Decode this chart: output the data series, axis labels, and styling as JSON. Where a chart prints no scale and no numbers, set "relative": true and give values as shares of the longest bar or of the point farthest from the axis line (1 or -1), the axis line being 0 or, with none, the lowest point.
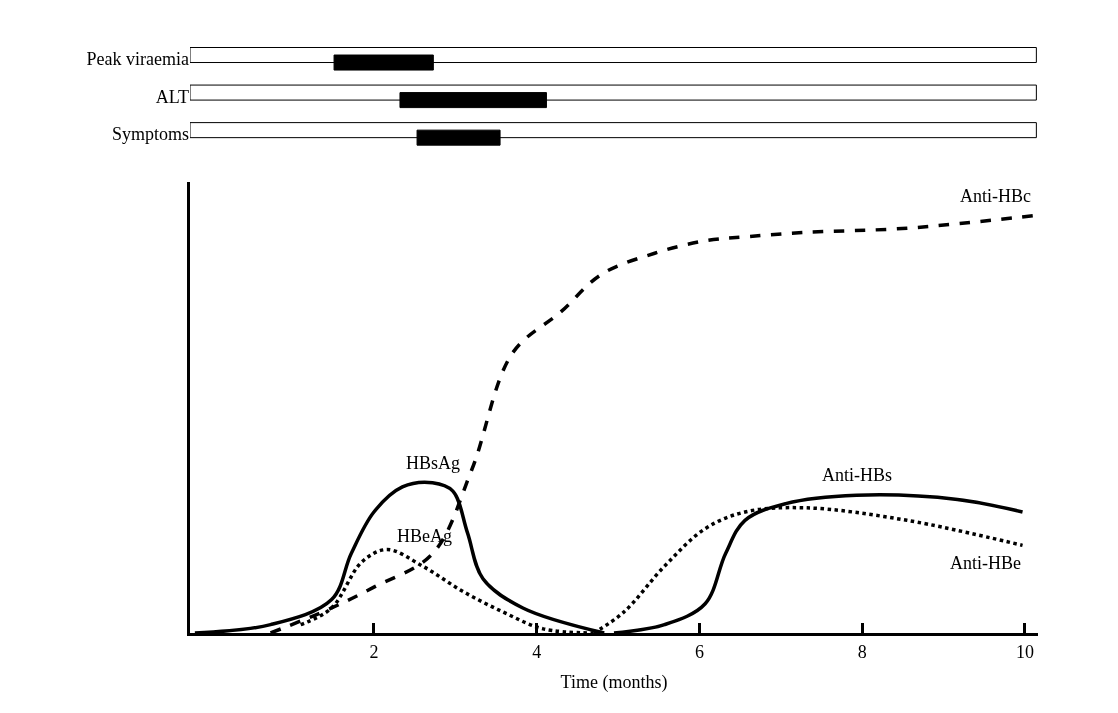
{
  "chart_data": [
    {
      "type": "bar",
      "orientation": "horizontal",
      "categories": [
        "Peak viraemia",
        "ALT",
        "Symptoms"
      ],
      "xlim": [
        -0.26,
        10.16
      ],
      "tick_labels": "y",
      "series": [
        {
          "color": "#ffffff",
          "base": [
            -0.26,
            -0.26,
            -0.26
          ],
          "values": [
            10.4,
            10.4,
            10.4
          ]
        },
        {
          "color": "#000000",
          "base": [
            1.51,
            2.32,
            2.53
          ],
          "values": [
            1.22,
            1.8,
            1.02
          ]
        }
      ]
    },
    {
      "type": "line",
      "relative": true,
      "xlim": [
        -0.26,
        10.16
      ],
      "xticks": [
        2,
        4,
        6,
        8,
        10
      ],
      "xlabel": "Time (months)",
      "tick_labels": "x",
      "series": [
        {
          "name": "Anti-HBc",
          "color": "#000000",
          "line_style": "dashed",
          "x": [
            0.73,
            1.48,
            2.0,
            2.72,
            3.2,
            3.7,
            4.3,
            4.8,
            5.45,
            6.07,
            6.6,
            7.3,
            8.55,
            10.1
          ],
          "values": [
            0,
            0.06,
            0.11,
            0.19,
            0.39,
            0.67,
            0.77,
            0.86,
            0.91,
            0.94,
            0.95,
            0.96,
            0.97,
            1.0
          ]
        },
        {
          "name": "HBsAg",
          "color": "#000000",
          "line_style": "solid",
          "x": [
            -0.2,
            0.73,
            1.48,
            1.72,
            2.0,
            2.35,
            2.72,
            2.97,
            3.15,
            3.34,
            3.83,
            4.83
          ],
          "values": [
            0,
            0.02,
            0.08,
            0.19,
            0.29,
            0.35,
            0.36,
            0.34,
            0.24,
            0.13,
            0.06,
            0
          ]
        },
        {
          "name": "HBeAg",
          "color": "#000000",
          "line_style": "dotted",
          "x": [
            1.1,
            1.48,
            1.85,
            2.16,
            2.6,
            3.09,
            3.59,
            4.08,
            4.7
          ],
          "values": [
            0.02,
            0.06,
            0.17,
            0.2,
            0.16,
            0.1,
            0.05,
            0.01,
            0
          ]
        },
        {
          "name": "Anti-HBe",
          "color": "#000000",
          "line_style": "dotted",
          "x": [
            4.7,
            5.07,
            5.57,
            6.07,
            6.56,
            7.3,
            8.55,
            9.97
          ],
          "values": [
            0,
            0.05,
            0.16,
            0.25,
            0.29,
            0.3,
            0.27,
            0.21
          ]
        },
        {
          "name": "Anti-HBs",
          "color": "#000000",
          "line_style": "solid",
          "x": [
            4.95,
            5.57,
            6.07,
            6.32,
            6.56,
            7.06,
            7.93,
            9.17,
            9.97
          ],
          "values": [
            0,
            0.02,
            0.07,
            0.19,
            0.27,
            0.31,
            0.33,
            0.32,
            0.29
          ]
        }
      ]
    }
  ]
}
